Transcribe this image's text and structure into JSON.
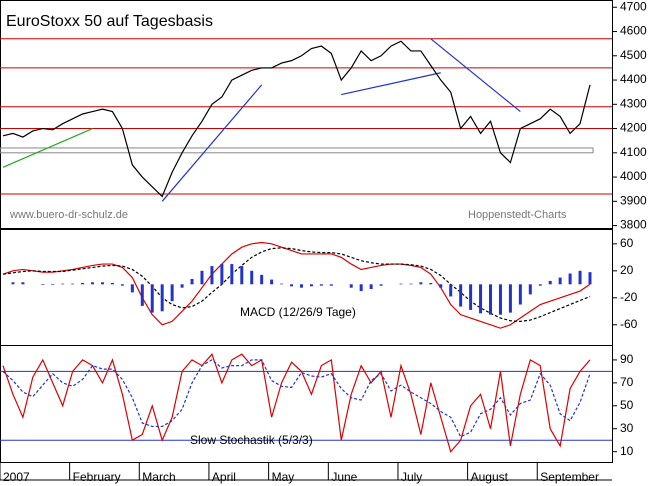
{
  "chart_data": [
    {
      "type": "line",
      "title": "EuroStoxx 50 auf Tagesbasis",
      "annotations": [
        "www.buero-dr-schulz.de",
        "Hoppenstedt-Charts"
      ],
      "ylim": [
        3790,
        4730
      ],
      "yticks": [
        3800,
        3900,
        4000,
        4100,
        4200,
        4300,
        4400,
        4500,
        4600,
        4700
      ],
      "series": [
        {
          "name": "EuroStoxx 50",
          "color": "#000000",
          "values": [
            4170,
            4180,
            4165,
            4190,
            4200,
            4195,
            4220,
            4240,
            4260,
            4270,
            4280,
            4270,
            4200,
            4050,
            4000,
            3960,
            3920,
            4020,
            4100,
            4170,
            4230,
            4300,
            4330,
            4400,
            4420,
            4440,
            4450,
            4450,
            4470,
            4480,
            4500,
            4530,
            4540,
            4510,
            4400,
            4450,
            4520,
            4480,
            4500,
            4540,
            4560,
            4520,
            4520,
            4460,
            4400,
            4350,
            4200,
            4250,
            4180,
            4230,
            4100,
            4060,
            4200,
            4220,
            4240,
            4280,
            4250,
            4180,
            4220,
            4380
          ]
        }
      ],
      "reference_lines": {
        "color": "#cc0000",
        "values": [
          4570,
          4450,
          4290,
          4200,
          3930
        ]
      },
      "band": {
        "color": "#888888",
        "values": [
          4100,
          4120
        ]
      },
      "trendlines": [
        {
          "color": "#22aa22",
          "x": [
            0,
            9
          ],
          "values": [
            4040,
            4200
          ]
        },
        {
          "color": "#2233cc",
          "x": [
            16,
            26
          ],
          "values": [
            3900,
            4380
          ]
        },
        {
          "color": "#2233cc",
          "x": [
            34,
            44
          ],
          "values": [
            4340,
            4430
          ]
        },
        {
          "color": "#2233cc",
          "x": [
            43,
            52
          ],
          "values": [
            4570,
            4270
          ]
        }
      ]
    },
    {
      "type": "line",
      "annotation": "MACD (12/26/9 Tage)",
      "ylim": [
        -90,
        82
      ],
      "yticks": [
        -60,
        -20,
        20,
        60
      ],
      "series": [
        {
          "name": "MACD",
          "color": "#dd0000",
          "values": [
            15,
            20,
            22,
            20,
            18,
            18,
            20,
            22,
            25,
            28,
            30,
            30,
            25,
            10,
            -20,
            -45,
            -60,
            -55,
            -40,
            -25,
            -5,
            15,
            30,
            45,
            55,
            60,
            62,
            60,
            55,
            50,
            45,
            45,
            45,
            45,
            40,
            30,
            22,
            25,
            28,
            30,
            30,
            28,
            25,
            15,
            -5,
            -30,
            -45,
            -50,
            -55,
            -60,
            -65,
            -60,
            -50,
            -40,
            -30,
            -25,
            -20,
            -15,
            -10,
            0
          ]
        },
        {
          "name": "Signal",
          "color": "#000000",
          "dashed": true,
          "values": [
            15,
            17,
            19,
            20,
            19,
            19,
            19,
            21,
            23,
            25,
            27,
            28,
            27,
            22,
            12,
            -3,
            -20,
            -30,
            -35,
            -33,
            -25,
            -12,
            0,
            15,
            28,
            40,
            48,
            53,
            54,
            53,
            50,
            48,
            47,
            47,
            45,
            40,
            35,
            32,
            30,
            30,
            30,
            29,
            27,
            22,
            13,
            0,
            -12,
            -25,
            -35,
            -43,
            -50,
            -54,
            -55,
            -53,
            -48,
            -42,
            -36,
            -30,
            -24,
            -18
          ]
        },
        {
          "name": "Histogramm",
          "color": "#2233cc",
          "bars": true,
          "values": [
            0,
            3,
            3,
            0,
            -1,
            -1,
            1,
            1,
            2,
            3,
            3,
            2,
            -2,
            -12,
            -32,
            -42,
            -40,
            -25,
            -5,
            8,
            20,
            27,
            30,
            30,
            27,
            20,
            14,
            7,
            1,
            -3,
            -5,
            -3,
            -2,
            -2,
            0,
            -5,
            -10,
            -7,
            -2,
            0,
            1,
            1,
            3,
            2,
            -5,
            -18,
            -33,
            -38,
            -43,
            -45,
            -45,
            -42,
            -30,
            -15,
            -2,
            5,
            10,
            16,
            20,
            18
          ]
        }
      ]
    },
    {
      "type": "line",
      "annotation": "Slow Stochastik (5/3/3)",
      "ylim": [
        1,
        103
      ],
      "yticks": [
        10,
        30,
        50,
        70,
        90
      ],
      "categories": [
        "2007",
        null,
        null,
        null,
        null,
        null,
        null,
        "February",
        null,
        null,
        null,
        null,
        null,
        null,
        "March",
        null,
        null,
        null,
        null,
        null,
        null,
        "April",
        null,
        null,
        null,
        null,
        null,
        "May",
        null,
        null,
        null,
        null,
        null,
        "June",
        null,
        null,
        null,
        null,
        null,
        null,
        "July",
        null,
        null,
        null,
        null,
        null,
        null,
        "August",
        null,
        null,
        null,
        null,
        null,
        null,
        "September",
        null,
        null,
        null,
        null,
        null
      ],
      "reference_lines": {
        "color": "#2233cc",
        "values": [
          80,
          20
        ]
      },
      "series": [
        {
          "name": "%K",
          "color": "#dd0000",
          "values": [
            85,
            60,
            40,
            75,
            90,
            70,
            50,
            80,
            90,
            85,
            70,
            90,
            60,
            20,
            25,
            50,
            20,
            40,
            80,
            90,
            85,
            95,
            70,
            90,
            95,
            85,
            90,
            40,
            70,
            88,
            80,
            60,
            85,
            90,
            20,
            60,
            85,
            70,
            80,
            40,
            85,
            60,
            25,
            70,
            40,
            10,
            20,
            50,
            60,
            30,
            80,
            15,
            60,
            90,
            85,
            30,
            15,
            65,
            80,
            90
          ]
        },
        {
          "name": "%D",
          "color": "#2233cc",
          "dashed": true,
          "values": [
            80,
            72,
            62,
            58,
            68,
            78,
            70,
            67,
            73,
            85,
            82,
            82,
            73,
            57,
            35,
            32,
            32,
            37,
            47,
            70,
            85,
            90,
            83,
            85,
            85,
            90,
            90,
            72,
            67,
            66,
            79,
            76,
            75,
            78,
            65,
            57,
            55,
            72,
            78,
            63,
            68,
            62,
            57,
            52,
            45,
            40,
            23,
            27,
            43,
            47,
            57,
            42,
            52,
            55,
            78,
            68,
            43,
            37,
            53,
            78
          ]
        }
      ]
    }
  ]
}
